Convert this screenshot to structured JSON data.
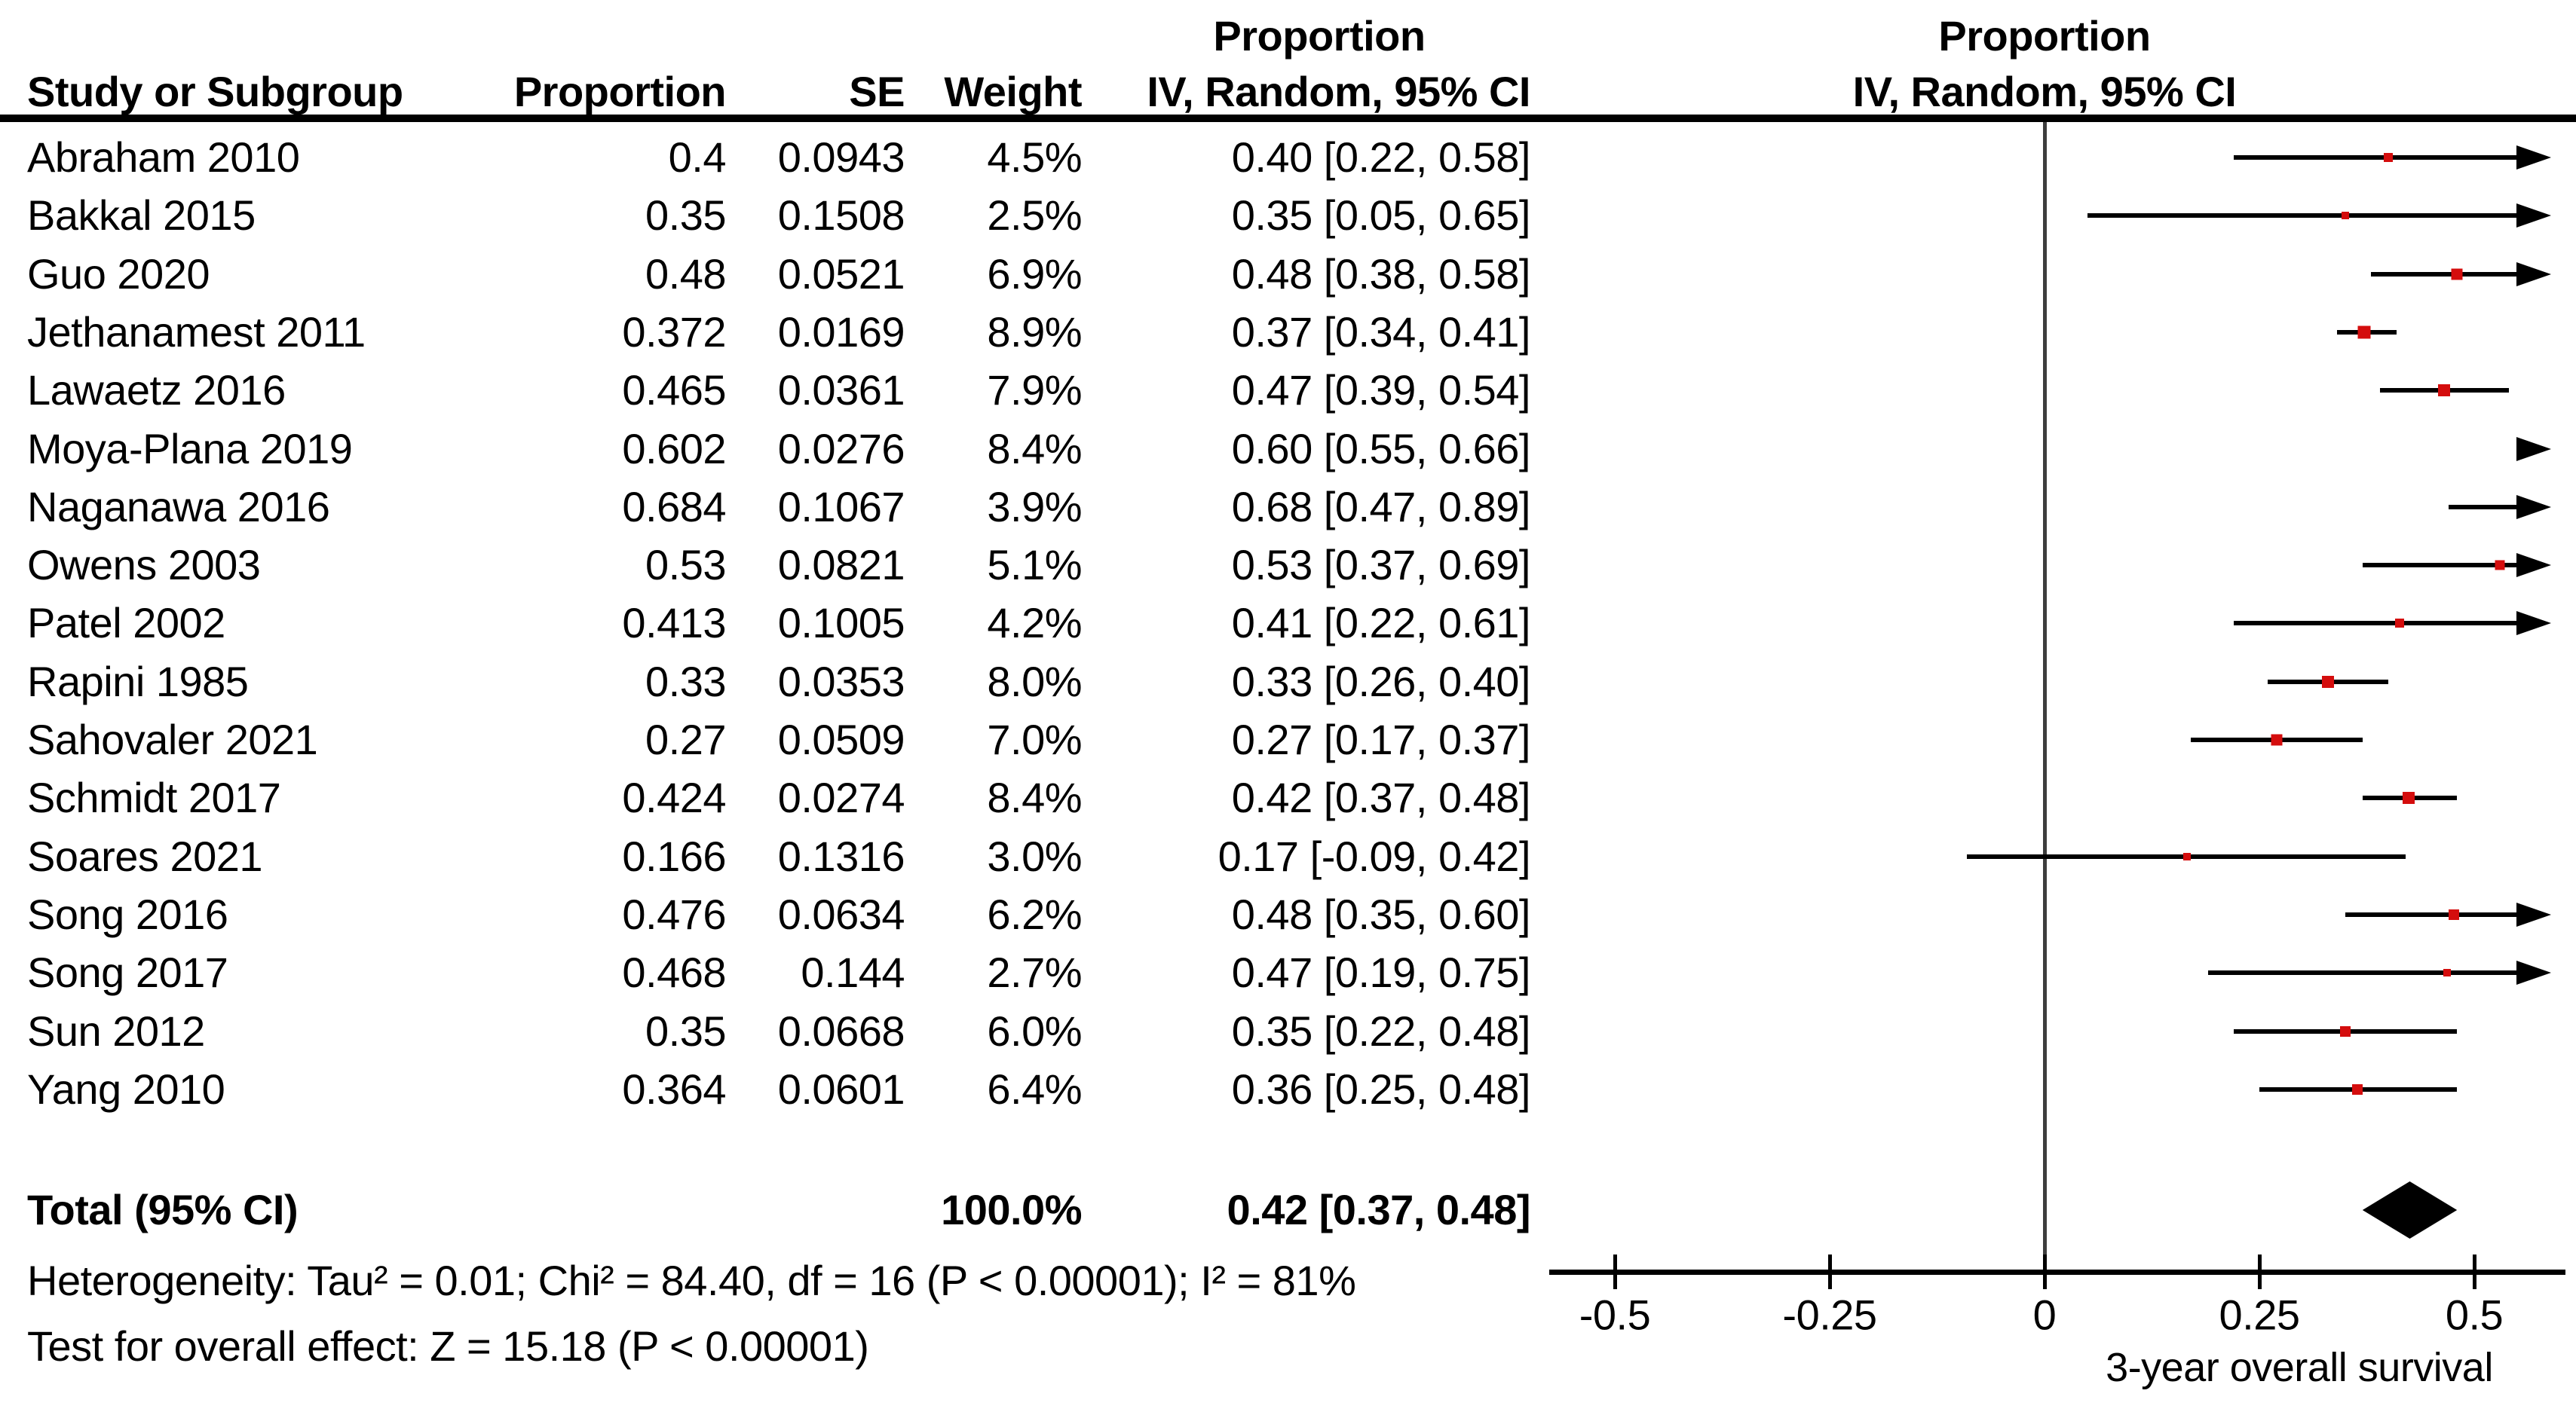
{
  "header": {
    "study": "Study or Subgroup",
    "proportion": "Proportion",
    "se": "SE",
    "weight": "Weight",
    "ci_line1": "Proportion",
    "ci_line2": "IV, Random, 95% CI",
    "plot_line1": "Proportion",
    "plot_line2": "IV, Random, 95% CI"
  },
  "total_row": {
    "label": "Total (95% CI)",
    "weight": "100.0%",
    "ci_text": "0.42 [0.37, 0.48]"
  },
  "footnotes": {
    "heterogeneity": "Heterogeneity: Tau² = 0.01; Chi² = 84.40, df = 16 (P < 0.00001); I² = 81%",
    "overall_effect": "Test for overall effect: Z = 15.18 (P < 0.00001)"
  },
  "colors": {
    "marker_red": "#D40D0D",
    "line_black": "#000000",
    "axis_gray": "#3d3d3d"
  },
  "chart_data": {
    "type": "forest",
    "effect_label": "IV, Random, 95% CI",
    "xlabel": "3-year overall survival",
    "x_ticks": [
      -0.5,
      -0.25,
      0,
      0.25,
      0.5
    ],
    "x_tick_labels": [
      "-0.5",
      "-0.25",
      "0",
      "0.25",
      "0.5"
    ],
    "xlim": [
      -0.59,
      0.59
    ],
    "studies": [
      {
        "name": "Abraham 2010",
        "proportion": "0.4",
        "se": "0.0943",
        "weight": "4.5%",
        "ci_text": "0.40 [0.22, 0.58]",
        "est": 0.4,
        "lo": 0.22,
        "hi": 0.58,
        "weight_pct": 4.5
      },
      {
        "name": "Bakkal 2015",
        "proportion": "0.35",
        "se": "0.1508",
        "weight": "2.5%",
        "ci_text": "0.35 [0.05, 0.65]",
        "est": 0.35,
        "lo": 0.05,
        "hi": 0.65,
        "weight_pct": 2.5
      },
      {
        "name": "Guo 2020",
        "proportion": "0.48",
        "se": "0.0521",
        "weight": "6.9%",
        "ci_text": "0.48 [0.38, 0.58]",
        "est": 0.48,
        "lo": 0.38,
        "hi": 0.58,
        "weight_pct": 6.9
      },
      {
        "name": "Jethanamest 2011",
        "proportion": "0.372",
        "se": "0.0169",
        "weight": "8.9%",
        "ci_text": "0.37 [0.34, 0.41]",
        "est": 0.372,
        "lo": 0.34,
        "hi": 0.41,
        "weight_pct": 8.9
      },
      {
        "name": "Lawaetz 2016",
        "proportion": "0.465",
        "se": "0.0361",
        "weight": "7.9%",
        "ci_text": "0.47 [0.39, 0.54]",
        "est": 0.465,
        "lo": 0.39,
        "hi": 0.54,
        "weight_pct": 7.9
      },
      {
        "name": "Moya-Plana 2019",
        "proportion": "0.602",
        "se": "0.0276",
        "weight": "8.4%",
        "ci_text": "0.60 [0.55, 0.66]",
        "est": 0.602,
        "lo": 0.55,
        "hi": 0.66,
        "weight_pct": 8.4
      },
      {
        "name": "Naganawa 2016",
        "proportion": "0.684",
        "se": "0.1067",
        "weight": "3.9%",
        "ci_text": "0.68 [0.47, 0.89]",
        "est": 0.684,
        "lo": 0.47,
        "hi": 0.89,
        "weight_pct": 3.9
      },
      {
        "name": "Owens 2003",
        "proportion": "0.53",
        "se": "0.0821",
        "weight": "5.1%",
        "ci_text": "0.53 [0.37, 0.69]",
        "est": 0.53,
        "lo": 0.37,
        "hi": 0.69,
        "weight_pct": 5.1
      },
      {
        "name": "Patel 2002",
        "proportion": "0.413",
        "se": "0.1005",
        "weight": "4.2%",
        "ci_text": "0.41 [0.22, 0.61]",
        "est": 0.413,
        "lo": 0.22,
        "hi": 0.61,
        "weight_pct": 4.2
      },
      {
        "name": "Rapini 1985",
        "proportion": "0.33",
        "se": "0.0353",
        "weight": "8.0%",
        "ci_text": "0.33 [0.26, 0.40]",
        "est": 0.33,
        "lo": 0.26,
        "hi": 0.4,
        "weight_pct": 8.0
      },
      {
        "name": "Sahovaler 2021",
        "proportion": "0.27",
        "se": "0.0509",
        "weight": "7.0%",
        "ci_text": "0.27 [0.17, 0.37]",
        "est": 0.27,
        "lo": 0.17,
        "hi": 0.37,
        "weight_pct": 7.0
      },
      {
        "name": "Schmidt 2017",
        "proportion": "0.424",
        "se": "0.0274",
        "weight": "8.4%",
        "ci_text": "0.42 [0.37, 0.48]",
        "est": 0.424,
        "lo": 0.37,
        "hi": 0.48,
        "weight_pct": 8.4
      },
      {
        "name": "Soares 2021",
        "proportion": "0.166",
        "se": "0.1316",
        "weight": "3.0%",
        "ci_text": "0.17 [-0.09, 0.42]",
        "est": 0.166,
        "lo": -0.09,
        "hi": 0.42,
        "weight_pct": 3.0
      },
      {
        "name": "Song 2016",
        "proportion": "0.476",
        "se": "0.0634",
        "weight": "6.2%",
        "ci_text": "0.48 [0.35, 0.60]",
        "est": 0.476,
        "lo": 0.35,
        "hi": 0.6,
        "weight_pct": 6.2
      },
      {
        "name": "Song 2017",
        "proportion": "0.468",
        "se": "0.144",
        "weight": "2.7%",
        "ci_text": "0.47 [0.19, 0.75]",
        "est": 0.468,
        "lo": 0.19,
        "hi": 0.75,
        "weight_pct": 2.7
      },
      {
        "name": "Sun 2012",
        "proportion": "0.35",
        "se": "0.0668",
        "weight": "6.0%",
        "ci_text": "0.35 [0.22, 0.48]",
        "est": 0.35,
        "lo": 0.22,
        "hi": 0.48,
        "weight_pct": 6.0
      },
      {
        "name": "Yang 2010",
        "proportion": "0.364",
        "se": "0.0601",
        "weight": "6.4%",
        "ci_text": "0.36 [0.25, 0.48]",
        "est": 0.364,
        "lo": 0.25,
        "hi": 0.48,
        "weight_pct": 6.4
      }
    ],
    "total": {
      "label": "Total (95% CI)",
      "est": 0.42,
      "lo": 0.37,
      "hi": 0.48,
      "weight_pct": 100.0,
      "ci_text": "0.42 [0.37, 0.48]"
    }
  }
}
